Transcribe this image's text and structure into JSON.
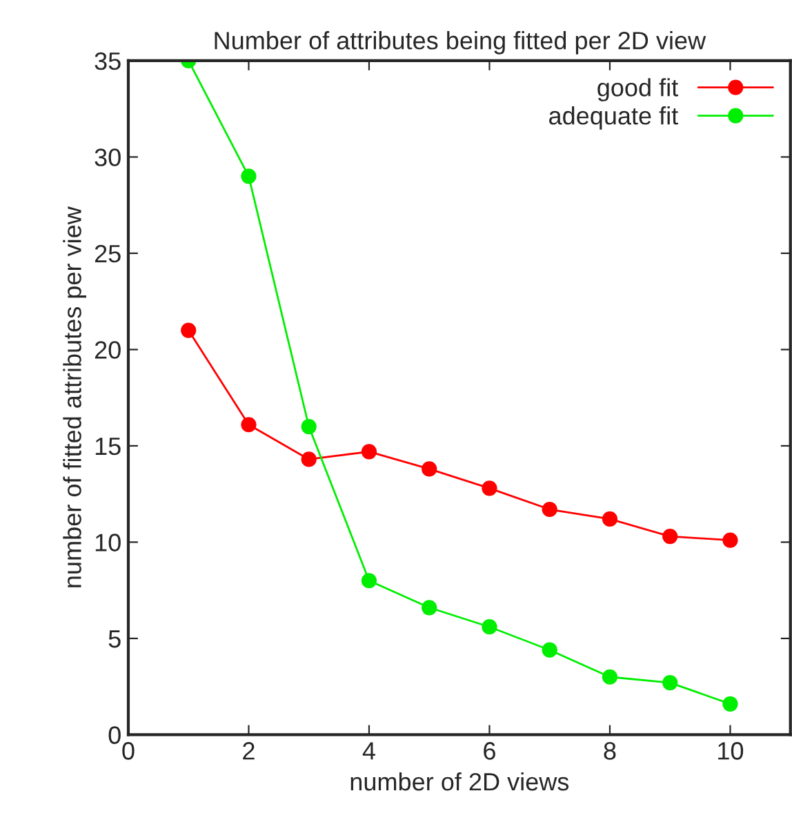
{
  "chart_data": {
    "type": "line",
    "title": "Number of attributes being fitted per 2D view",
    "xlabel": "number of 2D views",
    "ylabel": "number of fitted attributes per view",
    "x": [
      1,
      2,
      3,
      4,
      5,
      6,
      7,
      8,
      9,
      10
    ],
    "series": [
      {
        "name": "good fit",
        "color": "#ff0000",
        "values": [
          21.0,
          16.1,
          14.3,
          14.7,
          13.8,
          12.8,
          11.7,
          11.2,
          10.3,
          10.1
        ]
      },
      {
        "name": "adequate fit",
        "color": "#00ee00",
        "values": [
          35.0,
          29.0,
          16.0,
          8.0,
          6.6,
          5.6,
          4.4,
          3.0,
          2.7,
          1.6
        ]
      }
    ],
    "xlim": [
      0,
      11
    ],
    "xticks": [
      0,
      2,
      4,
      6,
      8,
      10
    ],
    "ylim": [
      0,
      35
    ],
    "yticks": [
      0,
      5,
      10,
      15,
      20,
      25,
      30,
      35
    ],
    "grid": false,
    "legend": "top right",
    "marker": "circle",
    "line_style": "solid"
  }
}
